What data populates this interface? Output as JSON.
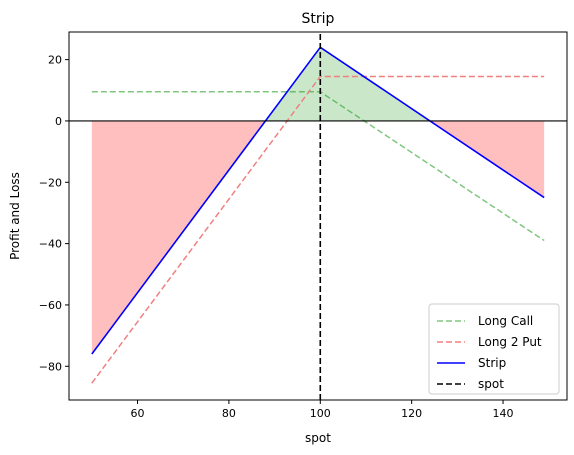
{
  "chart_data": {
    "type": "line",
    "title": "Strip",
    "xlabel": "spot",
    "ylabel": "Profit and Loss",
    "xlim": [
      45,
      154
    ],
    "ylim": [
      -91,
      29
    ],
    "xticks": [
      60,
      80,
      100,
      120,
      140
    ],
    "yticks": [
      -80,
      -60,
      -40,
      -20,
      0,
      20
    ],
    "xtick_labels": [
      "60",
      "80",
      "100",
      "120",
      "140"
    ],
    "ytick_labels": [
      "−80",
      "−60",
      "−40",
      "−20",
      "0",
      "20"
    ],
    "grid": false,
    "legend_position": "bottom-right",
    "series": [
      {
        "name": "Long Call",
        "color": "#2ca02c",
        "style": "dashed",
        "x": [
          50,
          100,
          149
        ],
        "y": [
          9.5,
          9.5,
          -39
        ]
      },
      {
        "name": "Long 2 Put",
        "color": "#f08080",
        "style": "dashed",
        "x": [
          50,
          100,
          149
        ],
        "y": [
          -85.5,
          14.5,
          14.5
        ]
      },
      {
        "name": "Strip",
        "color": "#0000ff",
        "style": "solid",
        "x": [
          50,
          100,
          149
        ],
        "y": [
          -76,
          24,
          -25
        ]
      },
      {
        "name": "spot",
        "color": "#000000",
        "style": "dashed",
        "x": [
          100,
          100
        ],
        "y": [
          -91,
          29
        ]
      }
    ],
    "fill_profit_color": "#2ca02c",
    "fill_loss_color": "#ff0000",
    "zero_line": 0
  }
}
